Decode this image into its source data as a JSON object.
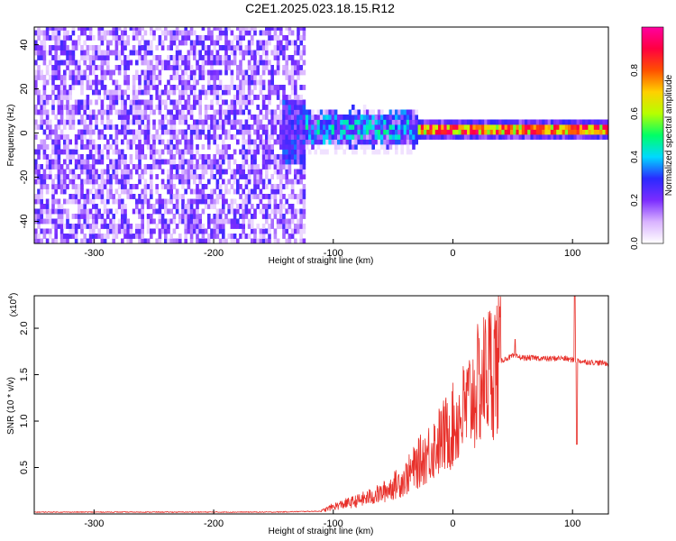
{
  "figure": {
    "title": "C2E1.2025.023.18.15.R12"
  },
  "chart_data": [
    {
      "type": "heatmap",
      "title": "C2E1.2025.023.18.15.R12",
      "xlabel": "Height of straight line (km)",
      "ylabel": "Frequency (Hz)",
      "xlim": [
        -350,
        130
      ],
      "ylim": [
        -50,
        48
      ],
      "xticks": [
        -300,
        -200,
        -100,
        0,
        100
      ],
      "yticks": [
        -40,
        -20,
        0,
        20,
        40
      ],
      "colorbar": {
        "label": "Normalized spectral amplitude",
        "range": [
          0,
          1
        ],
        "ticks": [
          "0.0",
          "0.2",
          "0.4",
          "0.6",
          "0.8"
        ],
        "colormap": [
          "#ffffff",
          "#d9b3ff",
          "#7b2cff",
          "#2a2aff",
          "#00d9ff",
          "#00ff66",
          "#b6ff00",
          "#ffd000",
          "#ff5000",
          "#ff0040",
          "#ff00a0"
        ]
      },
      "regions": [
        {
          "x_range": [
            -350,
            -125
          ],
          "description_level": 0.18,
          "freq_band": [
            -50,
            48
          ]
        },
        {
          "x_range": [
            -125,
            -30
          ],
          "level": 0.35,
          "freq_band": [
            -6,
            6
          ]
        },
        {
          "x_range": [
            -30,
            130
          ],
          "level": 0.75,
          "freq_band": [
            -1.5,
            3
          ]
        }
      ],
      "grid": false
    },
    {
      "type": "line",
      "xlabel": "Height of straight line (km)",
      "ylabel": "SNR (10 * v/v)",
      "ylabel_scale": "(x10",
      "ylabel_scale_exp": "4",
      "xlim": [
        -350,
        130
      ],
      "ylim": [
        0,
        2.35
      ],
      "xticks": [
        -300,
        -200,
        -100,
        0,
        100
      ],
      "yticks": [
        "0.5",
        "1.0",
        "1.5",
        "2.0"
      ],
      "series": [
        {
          "color": "#e8302a",
          "profile": [
            [
              -350,
              0.02
            ],
            [
              -150,
              0.02
            ],
            [
              -110,
              0.03
            ],
            [
              -100,
              0.08
            ],
            [
              -80,
              0.14
            ],
            [
              -60,
              0.22
            ],
            [
              -40,
              0.38
            ],
            [
              -25,
              0.6
            ],
            [
              -10,
              0.8
            ],
            [
              0,
              0.94
            ],
            [
              10,
              1.12
            ],
            [
              20,
              1.35
            ],
            [
              30,
              1.55
            ],
            [
              40,
              1.65
            ],
            [
              50,
              1.7
            ],
            [
              60,
              1.68
            ],
            [
              70,
              1.68
            ],
            [
              80,
              1.67
            ],
            [
              90,
              1.68
            ],
            [
              100,
              1.66
            ],
            [
              110,
              1.64
            ],
            [
              120,
              1.63
            ],
            [
              130,
              1.62
            ]
          ]
        }
      ],
      "grid": false
    }
  ]
}
